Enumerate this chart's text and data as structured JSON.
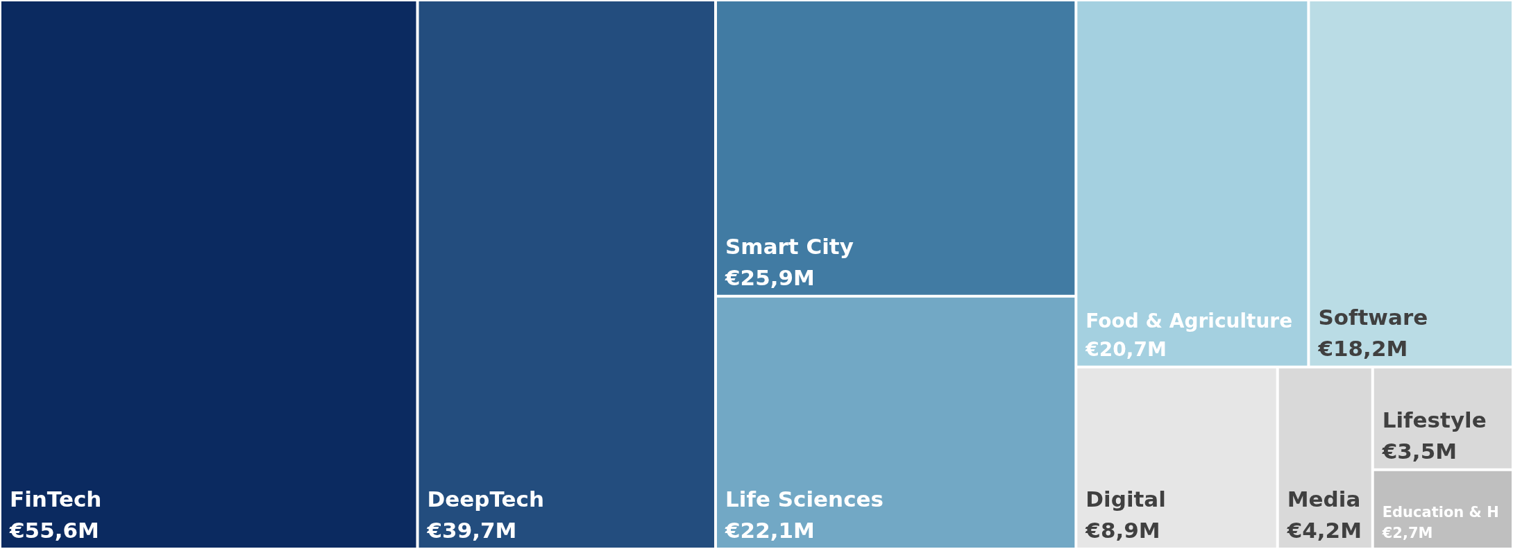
{
  "chart_data": {
    "type": "other",
    "categories": [
      "FinTech",
      "DeepTech",
      "Smart City",
      "Life Sciences",
      "Food & Agriculture",
      "Software",
      "Digital",
      "Media",
      "Lifestyle",
      "Education & H"
    ],
    "values": [
      55.6,
      39.7,
      25.9,
      22.1,
      20.7,
      18.2,
      8.9,
      4.2,
      3.5,
      2.7
    ],
    "value_labels": [
      "€55,6M",
      "€39,7M",
      "€25,9M",
      "€22,1M",
      "€20,7M",
      "€18,2M",
      "€8,9M",
      "€4,2M",
      "€3,5M",
      "€2,7M"
    ],
    "colors": [
      "#0b2a60",
      "#234d7e",
      "#417ba3",
      "#72a8c5",
      "#a4d0e0",
      "#badce5",
      "#e6e6e6",
      "#d9d9d9",
      "#d9d9d9",
      "#bfbfbf"
    ]
  }
}
